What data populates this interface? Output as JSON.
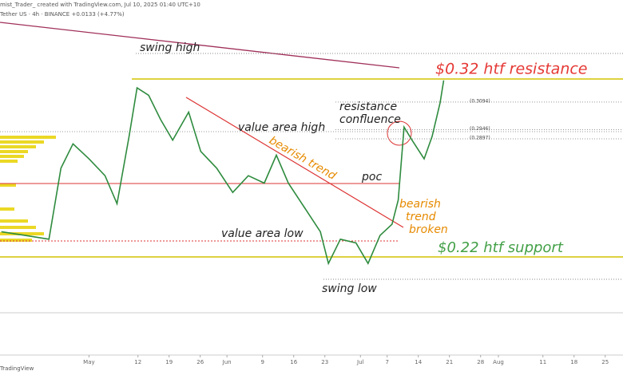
{
  "chart_data": {
    "type": "line",
    "header": [
      "mist_Trader_ created with TradingView.com, Jul 10, 2025 01:40 UTC+10",
      "Tether US · 4h · BINANCE  +0.0133 (+4.77%)"
    ],
    "footer": "TradingView",
    "annotations": [
      "swing high",
      "$0.32 htf resistance",
      "resistance",
      "confluence",
      "value area high",
      "bearish trend",
      "poc",
      "bearish",
      "trend",
      "broken",
      "value area low",
      "$0.22 htf support",
      "swing low"
    ],
    "price_labels": [
      {
        "value": 0.3094,
        "label": "(0.3094)"
      },
      {
        "value": 0.2946,
        "label": "(0.2946)"
      },
      {
        "value": 0.2897,
        "label": "(0.2897)"
      }
    ],
    "x": [
      -19.7,
      -14.3,
      -9.0,
      -6.3,
      -3.6,
      0,
      3.6,
      6.3,
      9.0,
      10.8,
      13.4,
      16.1,
      18.8,
      22.4,
      25.1,
      28.7,
      32.3,
      35.8,
      39.4,
      42.1,
      44.8,
      48.4,
      52.0,
      53.8,
      56.5,
      60.0,
      62.7,
      65.4,
      68.1,
      69.5,
      70.8,
      72.6,
      75.3,
      77.1,
      78.9,
      79.7
    ],
    "values": [
      0.24,
      0.238,
      0.236,
      0.274,
      0.287,
      0.279,
      0.27,
      0.255,
      0.291,
      0.317,
      0.313,
      0.3,
      0.289,
      0.304,
      0.283,
      0.274,
      0.261,
      0.27,
      0.266,
      0.281,
      0.266,
      0.253,
      0.24,
      0.223,
      0.236,
      0.234,
      0.223,
      0.238,
      0.244,
      0.257,
      0.296,
      0.289,
      0.279,
      0.291,
      0.309,
      0.321
    ],
    "color": "#2e8b3e",
    "xlim": [
      -20,
      120
    ],
    "ylim": [
      0.174,
      0.364
    ],
    "xticks": [
      {
        "value": 0,
        "label": "May"
      },
      {
        "value": 11,
        "label": "12"
      },
      {
        "value": 18,
        "label": "19"
      },
      {
        "value": 25,
        "label": "26"
      },
      {
        "value": 31,
        "label": "Jun"
      },
      {
        "value": 39,
        "label": "9"
      },
      {
        "value": 46,
        "label": "16"
      },
      {
        "value": 53,
        "label": "23"
      },
      {
        "value": 61,
        "label": "Jul"
      },
      {
        "value": 67,
        "label": "7"
      },
      {
        "value": 74,
        "label": "14"
      },
      {
        "value": 81,
        "label": "21"
      },
      {
        "value": 88,
        "label": "28"
      },
      {
        "value": 92,
        "label": "Aug"
      },
      {
        "value": 102,
        "label": "11"
      },
      {
        "value": 109,
        "label": "18"
      },
      {
        "value": 116,
        "label": "25"
      }
    ]
  }
}
